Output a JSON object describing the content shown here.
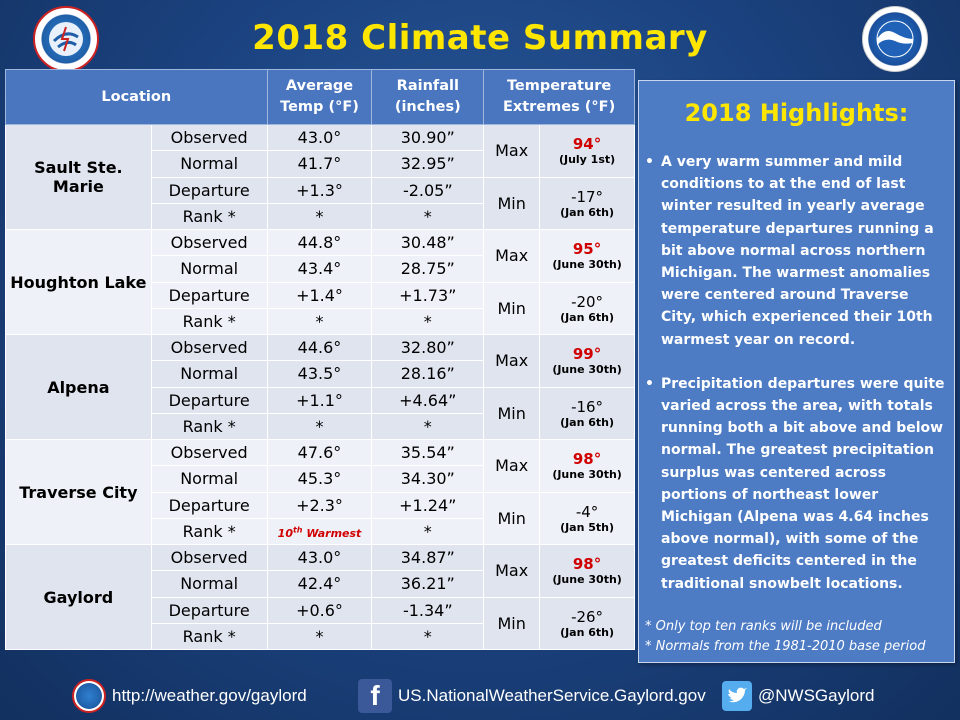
{
  "title": "2018 Climate Summary",
  "logos": {
    "left_icon": "nws-logo",
    "right_icon": "noaa-logo"
  },
  "table": {
    "headers": {
      "location": "Location",
      "avg_temp": [
        "Average",
        "Temp (°F)"
      ],
      "rainfall": [
        "Rainfall",
        "(inches)"
      ],
      "temp_extremes": [
        "Temperature",
        "Extremes (°F)"
      ]
    },
    "locations": [
      {
        "name": "Sault Ste. Marie",
        "rows": [
          {
            "label": "Observed",
            "temp": "43.0°",
            "rain": "30.90”"
          },
          {
            "label": "Normal",
            "temp": "41.7°",
            "rain": "32.95”"
          },
          {
            "label": "Departure",
            "temp": "+1.3°",
            "rain": "-2.05”"
          },
          {
            "label": "Rank *",
            "temp": "*",
            "rain": "*"
          }
        ],
        "max": {
          "label": "Max",
          "value": "94°",
          "date": "(July 1st)"
        },
        "min": {
          "label": "Min",
          "value": "-17°",
          "date": "(Jan 6th)"
        }
      },
      {
        "name": "Houghton Lake",
        "rows": [
          {
            "label": "Observed",
            "temp": "44.8°",
            "rain": "30.48”"
          },
          {
            "label": "Normal",
            "temp": "43.4°",
            "rain": "28.75”"
          },
          {
            "label": "Departure",
            "temp": "+1.4°",
            "rain": "+1.73”"
          },
          {
            "label": "Rank *",
            "temp": "*",
            "rain": "*"
          }
        ],
        "max": {
          "label": "Max",
          "value": "95°",
          "date": "(June 30th)"
        },
        "min": {
          "label": "Min",
          "value": "-20°",
          "date": "(Jan 6th)"
        }
      },
      {
        "name": "Alpena",
        "rows": [
          {
            "label": "Observed",
            "temp": "44.6°",
            "rain": "32.80”"
          },
          {
            "label": "Normal",
            "temp": "43.5°",
            "rain": "28.16”"
          },
          {
            "label": "Departure",
            "temp": "+1.1°",
            "rain": "+4.64”"
          },
          {
            "label": "Rank *",
            "temp": "*",
            "rain": "*"
          }
        ],
        "max": {
          "label": "Max",
          "value": "99°",
          "date": "(June 30th)"
        },
        "min": {
          "label": "Min",
          "value": "-16°",
          "date": "(Jan 6th)"
        }
      },
      {
        "name": "Traverse City",
        "rows": [
          {
            "label": "Observed",
            "temp": "47.6°",
            "rain": "35.54”"
          },
          {
            "label": "Normal",
            "temp": "45.3°",
            "rain": "34.30”"
          },
          {
            "label": "Departure",
            "temp": "+2.3°",
            "rain": "+1.24”"
          },
          {
            "label": "Rank *",
            "temp": "10th Warmest",
            "rain": "*",
            "temp_highlight": true
          }
        ],
        "max": {
          "label": "Max",
          "value": "98°",
          "date": "(June 30th)"
        },
        "min": {
          "label": "Min",
          "value": "-4°",
          "date": "(Jan 5th)"
        }
      },
      {
        "name": "Gaylord",
        "rows": [
          {
            "label": "Observed",
            "temp": "43.0°",
            "rain": "34.87”"
          },
          {
            "label": "Normal",
            "temp": "42.4°",
            "rain": "36.21”"
          },
          {
            "label": "Departure",
            "temp": "+0.6°",
            "rain": "-1.34”"
          },
          {
            "label": "Rank *",
            "temp": "*",
            "rain": "*"
          }
        ],
        "max": {
          "label": "Max",
          "value": "98°",
          "date": "(June 30th)"
        },
        "min": {
          "label": "Min",
          "value": "-26°",
          "date": "(Jan 6th)"
        }
      }
    ]
  },
  "highlights": {
    "title": "2018 Highlights:",
    "bullets": [
      "A very warm summer and mild conditions to at the end of last winter resulted in yearly average temperature departures running a bit above normal across northern Michigan. The warmest anomalies were centered around Traverse City, which experienced their 10th warmest year on record.",
      "Precipitation departures were quite varied across the area, with totals running both a bit above and below normal. The greatest precipitation surplus was centered across portions of northeast lower Michigan (Alpena was 4.64 inches above normal), with some of the greatest deficits centered in the traditional snowbelt locations."
    ],
    "notes": [
      "*  Only top ten ranks will be included",
      "*  Normals from the 1981-2010 base period"
    ]
  },
  "footer": {
    "website": "http://weather.gov/gaylord",
    "facebook": "US.NationalWeatherService.Gaylord.gov",
    "twitter": "@NWSGaylord",
    "icons": [
      "nws-logo",
      "facebook-icon",
      "twitter-icon"
    ]
  }
}
